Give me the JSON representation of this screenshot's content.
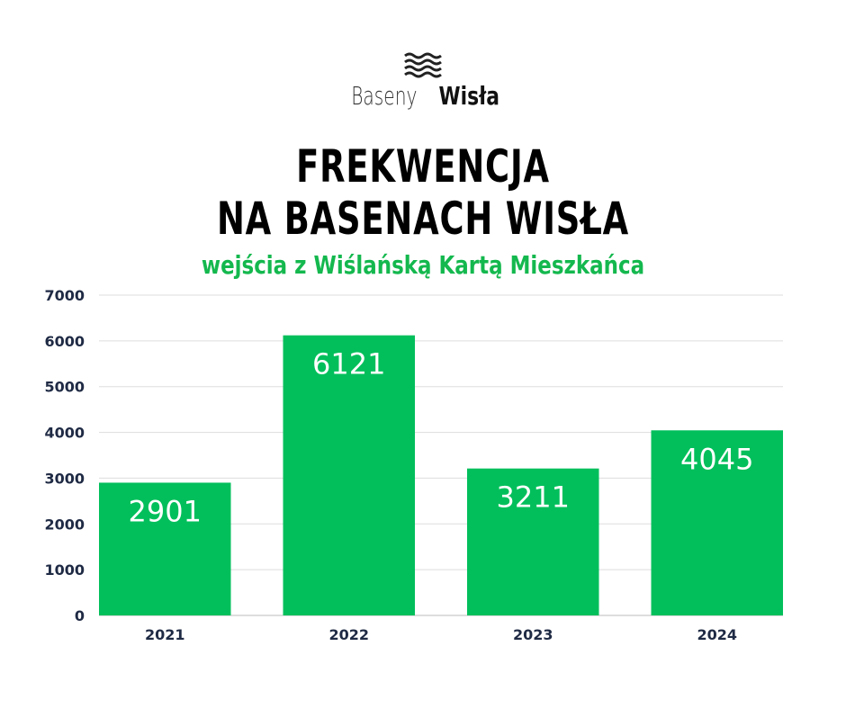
{
  "brand": {
    "name_light": "Baseny",
    "name_bold": "Wisła",
    "logo_icon": "waves-icon"
  },
  "title_line1": "FREKWENCJA",
  "title_line2": "NA BASENACH WISŁA",
  "subtitle": "wejścia z Wiślańską Kartą Mieszkańca",
  "colors": {
    "bar": "#02bf5b",
    "subtitle": "#14b84e",
    "grid": "#dddddd",
    "label": "#ffffff"
  },
  "chart_data": {
    "type": "bar",
    "categories": [
      "2021",
      "2022",
      "2023",
      "2024"
    ],
    "values": [
      2901,
      6121,
      3211,
      4045
    ],
    "data_labels": [
      "2901",
      "6121",
      "3211",
      "4045"
    ],
    "ylim": [
      0,
      7000
    ],
    "yticks": [
      "0",
      "1000",
      "2000",
      "3000",
      "4000",
      "5000",
      "6000",
      "7000"
    ],
    "grid": true,
    "title": "",
    "xlabel": "",
    "ylabel": ""
  }
}
